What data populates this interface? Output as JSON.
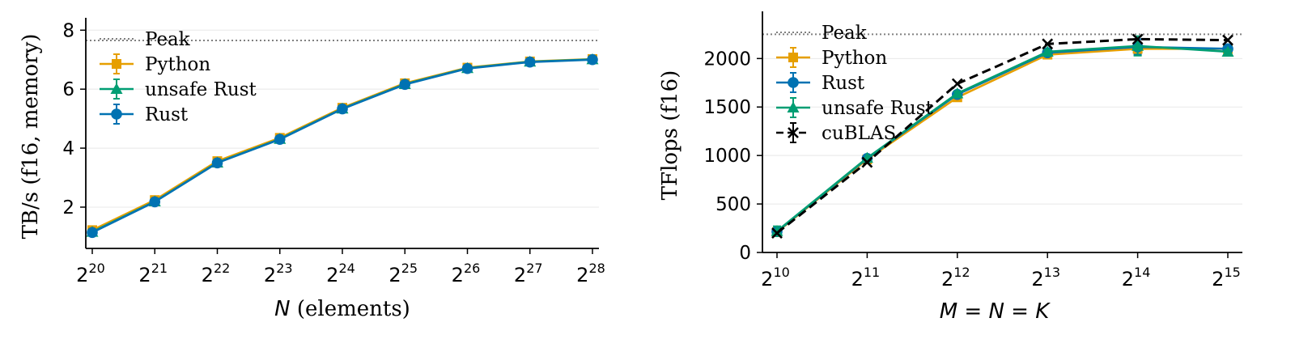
{
  "colors": {
    "python": "#E69F00",
    "unsafe_rust": "#009E73",
    "rust": "#0072B2",
    "cublas": "#000000",
    "peak": "#808080",
    "grid": "#e8e8e8"
  },
  "chart_data": [
    {
      "type": "line",
      "xlabel_var": "N",
      "xlabel_rest": " (elements)",
      "ylabel": "TB/s (f16, memory)",
      "x_scale": "log2",
      "x_exponents": [
        20,
        21,
        22,
        23,
        24,
        25,
        26,
        27,
        28
      ],
      "x_tick_base": "2",
      "x_tick_exponents": [
        "20",
        "21",
        "22",
        "23",
        "24",
        "25",
        "26",
        "27",
        "28"
      ],
      "ylim": [
        0.6,
        8.2
      ],
      "y_ticks": [
        2,
        4,
        6,
        8
      ],
      "y_tick_labels": [
        "2",
        "4",
        "6",
        "8"
      ],
      "grid": "horizontal",
      "peak": {
        "name": "Peak",
        "value": 7.65
      },
      "legend_placement": "top-left",
      "legend_order": [
        "Peak",
        "Python",
        "unsafe Rust",
        "Rust"
      ],
      "series": [
        {
          "name": "Python",
          "color_key": "python",
          "marker": "square",
          "values": [
            1.22,
            2.24,
            3.56,
            4.35,
            5.37,
            6.2,
            6.73,
            6.94,
            7.02
          ]
        },
        {
          "name": "unsafe Rust",
          "color_key": "unsafe_rust",
          "marker": "triangle",
          "values": [
            1.16,
            2.19,
            3.51,
            4.31,
            5.34,
            6.17,
            6.71,
            6.93,
            7.01
          ]
        },
        {
          "name": "Rust",
          "color_key": "rust",
          "marker": "circle",
          "values": [
            1.14,
            2.18,
            3.5,
            4.3,
            5.33,
            6.16,
            6.7,
            6.92,
            7.0
          ]
        }
      ]
    },
    {
      "type": "line",
      "xlabel_expr": "M = N = K",
      "ylabel": "TFlops (f16)",
      "x_scale": "log2",
      "x_exponents": [
        10,
        11,
        12,
        13,
        14,
        15
      ],
      "x_tick_base": "2",
      "x_tick_exponents": [
        "10",
        "11",
        "12",
        "13",
        "14",
        "15"
      ],
      "ylim": [
        0,
        2420
      ],
      "y_ticks": [
        0,
        500,
        1000,
        1500,
        2000
      ],
      "y_tick_labels": [
        "0",
        "500",
        "1000",
        "1500",
        "2000"
      ],
      "grid": "horizontal",
      "peak": {
        "name": "Peak",
        "value": 2250
      },
      "legend_placement": "top-left",
      "legend_order": [
        "Peak",
        "Python",
        "Rust",
        "unsafe Rust",
        "cuBLAS"
      ],
      "series": [
        {
          "name": "Python",
          "color_key": "python",
          "marker": "square",
          "values": [
            210,
            960,
            1600,
            2040,
            2100,
            2100
          ],
          "err": [
            0,
            0,
            20,
            20,
            50,
            20
          ]
        },
        {
          "name": "Rust",
          "color_key": "rust",
          "marker": "circle",
          "values": [
            215,
            970,
            1630,
            2060,
            2120,
            2100
          ],
          "err": [
            0,
            0,
            20,
            20,
            80,
            20
          ]
        },
        {
          "name": "unsafe Rust",
          "color_key": "unsafe_rust",
          "marker": "triangle",
          "values": [
            220,
            975,
            1640,
            2070,
            2130,
            2070
          ],
          "err": [
            50,
            0,
            20,
            20,
            100,
            20
          ]
        },
        {
          "name": "cuBLAS",
          "color_key": "cublas",
          "marker": "x",
          "dashed": true,
          "values": [
            200,
            930,
            1740,
            2150,
            2200,
            2190
          ],
          "err": [
            0,
            0,
            0,
            0,
            0,
            0
          ]
        }
      ]
    }
  ]
}
